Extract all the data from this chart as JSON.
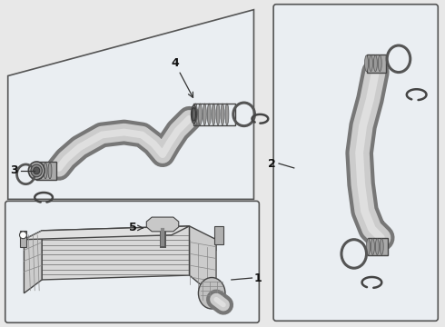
{
  "bg_color": "#e8e8e8",
  "box_fill": "#e8eef2",
  "box_edge": "#555555",
  "tube_outer": "#aaaaaa",
  "tube_inner": "#d8d8d8",
  "tube_edge": "#444444",
  "connector_fill": "#888888",
  "connector_edge": "#333333",
  "ring_fill": "none",
  "ring_edge": "#555555",
  "label_color": "#111111",
  "line_color": "#333333"
}
